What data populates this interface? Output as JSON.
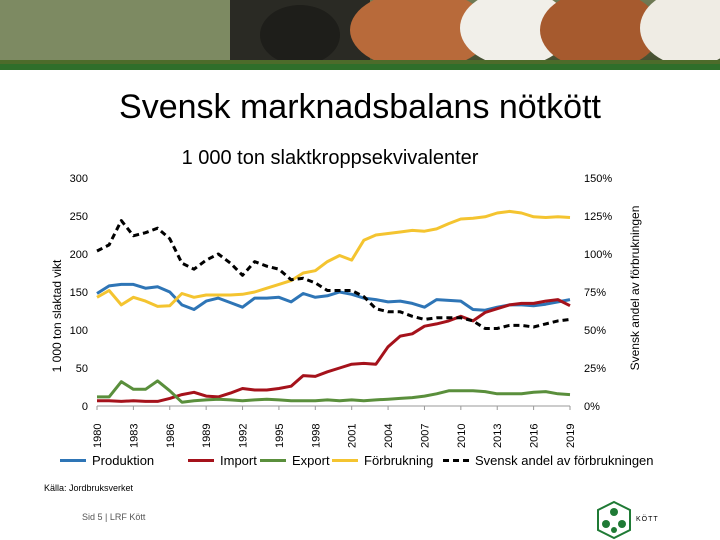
{
  "slide": {
    "title": "Svensk marknadsbalans nötkött",
    "source": "Källa: Jordbruksverket",
    "footer": "Sid 5 | LRF Kött",
    "logo_text": "KÖTT"
  },
  "colors": {
    "produktion": "#2e75b6",
    "import": "#a5121b",
    "export": "#5a8f3c",
    "forbrukning": "#f4c430",
    "andel": "#000000",
    "brand_green": "#1f7a35"
  },
  "chart_data": {
    "type": "line",
    "title": "1 000 ton slaktkroppsekvivalenter",
    "ylabel": "1 000 ton slaktad vikt",
    "y2label": "Svensk andel av förbrukningen",
    "ylim": [
      0,
      300
    ],
    "y2lim": [
      0,
      1.5
    ],
    "yticks": [
      "0",
      "50",
      "100",
      "150",
      "200",
      "250",
      "300"
    ],
    "y2ticks": [
      "0%",
      "25%",
      "50%",
      "75%",
      "100%",
      "125%",
      "150%"
    ],
    "x": [
      1980,
      1981,
      1982,
      1983,
      1984,
      1985,
      1986,
      1987,
      1988,
      1989,
      1990,
      1991,
      1992,
      1993,
      1994,
      1995,
      1996,
      1997,
      1998,
      1999,
      2000,
      2001,
      2002,
      2003,
      2004,
      2005,
      2006,
      2007,
      2008,
      2009,
      2010,
      2011,
      2012,
      2013,
      2014,
      2015,
      2016,
      2017,
      2018,
      2019
    ],
    "xticklabels": [
      "1980",
      "1983",
      "1986",
      "1989",
      "1992",
      "1995",
      "1998",
      "2001",
      "2004",
      "2007",
      "2010",
      "2013",
      "2016",
      "2019"
    ],
    "legend_position": "bottom",
    "series": [
      {
        "name": "Produktion",
        "key": "produktion",
        "axis": "left",
        "values": [
          148,
          158,
          160,
          160,
          155,
          157,
          150,
          133,
          127,
          138,
          142,
          136,
          130,
          142,
          142,
          143,
          137,
          148,
          143,
          145,
          150,
          147,
          142,
          140,
          137,
          138,
          135,
          130,
          140,
          139,
          138,
          127,
          126,
          130,
          133,
          133,
          132,
          134,
          137,
          140
        ]
      },
      {
        "name": "Import",
        "key": "import",
        "axis": "left",
        "values": [
          7,
          7,
          6,
          7,
          6,
          6,
          10,
          15,
          18,
          13,
          12,
          17,
          23,
          21,
          21,
          23,
          26,
          40,
          39,
          45,
          50,
          55,
          56,
          55,
          78,
          92,
          95,
          105,
          108,
          112,
          118,
          112,
          123,
          128,
          133,
          135,
          135,
          138,
          140,
          132
        ]
      },
      {
        "name": "Export",
        "key": "export",
        "axis": "left",
        "values": [
          12,
          12,
          32,
          22,
          22,
          33,
          20,
          5,
          7,
          8,
          9,
          8,
          7,
          8,
          9,
          8,
          7,
          7,
          7,
          8,
          7,
          8,
          7,
          8,
          9,
          10,
          11,
          13,
          16,
          20,
          20,
          20,
          19,
          16,
          16,
          16,
          18,
          19,
          16,
          15
        ]
      },
      {
        "name": "Förbrukning",
        "key": "forbrukning",
        "axis": "left",
        "values": [
          143,
          152,
          133,
          143,
          138,
          131,
          132,
          148,
          143,
          146,
          146,
          146,
          147,
          150,
          155,
          160,
          165,
          175,
          178,
          190,
          198,
          192,
          218,
          225,
          227,
          229,
          231,
          230,
          233,
          240,
          246,
          247,
          249,
          254,
          256,
          254,
          249,
          248,
          249,
          248
        ]
      },
      {
        "name": "Svensk andel av förbrukningen",
        "key": "andel",
        "axis": "right",
        "dashed": true,
        "values": [
          1.02,
          1.06,
          1.22,
          1.12,
          1.14,
          1.17,
          1.1,
          0.94,
          0.9,
          0.96,
          1.0,
          0.94,
          0.86,
          0.95,
          0.92,
          0.9,
          0.83,
          0.84,
          0.81,
          0.76,
          0.76,
          0.76,
          0.72,
          0.64,
          0.62,
          0.62,
          0.59,
          0.57,
          0.58,
          0.58,
          0.58,
          0.56,
          0.51,
          0.51,
          0.53,
          0.53,
          0.52,
          0.54,
          0.56,
          0.57
        ]
      }
    ]
  }
}
